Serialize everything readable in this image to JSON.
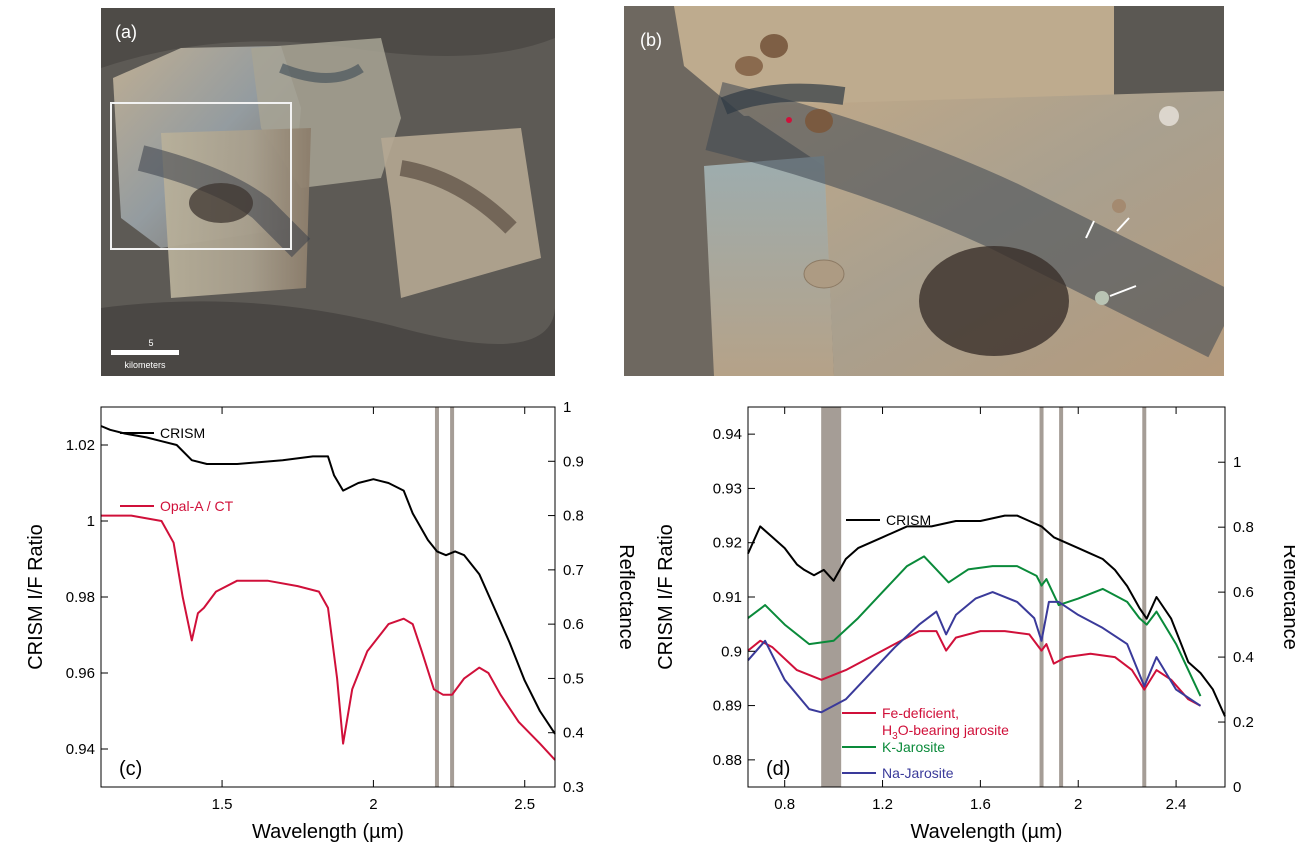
{
  "panels": {
    "a": {
      "label": "(a)",
      "scale_value": "5",
      "scale_unit": "kilometers"
    },
    "b": {
      "label": "(b)"
    }
  },
  "colors": {
    "crism": "#000000",
    "red": "#d0103a",
    "green": "#0a8a3a",
    "blue": "#3a3a9a",
    "band": "#a59d96"
  },
  "chart_data": [
    {
      "panel": "(c)",
      "type": "line",
      "xlabel": "Wavelength (µm)",
      "ylabel_left": "CRISM I/F Ratio",
      "ylabel_right": "Reflectance",
      "xlim": [
        1.1,
        2.6
      ],
      "ylim_left": [
        0.93,
        1.03
      ],
      "ylim_right": [
        0.3,
        1.0
      ],
      "x_ticks": [
        "1.5",
        "2",
        "2.5"
      ],
      "y_ticks_left": [
        "0.94",
        "0.96",
        "0.98",
        "1",
        "1.02"
      ],
      "y_ticks_right": [
        "0.3",
        "0.4",
        "0.5",
        "0.6",
        "0.7",
        "0.8",
        "0.9",
        "1"
      ],
      "absorption_bands": [
        2.21,
        2.26
      ],
      "series": [
        {
          "name": "CRISM",
          "axis": "left",
          "color": "#000000",
          "x": [
            1.1,
            1.13,
            1.18,
            1.25,
            1.3,
            1.35,
            1.4,
            1.45,
            1.55,
            1.7,
            1.8,
            1.85,
            1.87,
            1.9,
            1.95,
            2.0,
            2.05,
            2.1,
            2.13,
            2.18,
            2.21,
            2.24,
            2.27,
            2.3,
            2.35,
            2.4,
            2.45,
            2.5,
            2.55,
            2.6
          ],
          "y": [
            1.025,
            1.024,
            1.023,
            1.022,
            1.021,
            1.02,
            1.016,
            1.015,
            1.015,
            1.016,
            1.017,
            1.017,
            1.012,
            1.008,
            1.01,
            1.011,
            1.01,
            1.008,
            1.002,
            0.995,
            0.992,
            0.991,
            0.992,
            0.991,
            0.986,
            0.977,
            0.968,
            0.958,
            0.95,
            0.944
          ]
        },
        {
          "name": "Opal-A / CT",
          "axis": "right",
          "color": "#d0103a",
          "x": [
            1.1,
            1.2,
            1.3,
            1.34,
            1.37,
            1.4,
            1.42,
            1.44,
            1.48,
            1.55,
            1.65,
            1.75,
            1.82,
            1.85,
            1.88,
            1.9,
            1.93,
            1.98,
            2.05,
            2.1,
            2.13,
            2.16,
            2.2,
            2.23,
            2.26,
            2.3,
            2.35,
            2.38,
            2.42,
            2.48,
            2.55,
            2.6
          ],
          "y": [
            0.8,
            0.8,
            0.79,
            0.75,
            0.65,
            0.57,
            0.62,
            0.63,
            0.66,
            0.68,
            0.68,
            0.67,
            0.66,
            0.63,
            0.5,
            0.38,
            0.48,
            0.55,
            0.6,
            0.61,
            0.6,
            0.55,
            0.48,
            0.47,
            0.47,
            0.5,
            0.52,
            0.51,
            0.47,
            0.42,
            0.38,
            0.35
          ]
        }
      ],
      "legend": [
        "CRISM",
        "Opal-A / CT"
      ]
    },
    {
      "panel": "(d)",
      "type": "line",
      "xlabel": "Wavelength (µm)",
      "ylabel_left": "CRISM I/F Ratio",
      "ylabel_right": "Reflectance",
      "xlim": [
        0.65,
        2.6
      ],
      "ylim_left": [
        0.875,
        0.945
      ],
      "ylim_right": [
        0.0,
        1.17
      ],
      "x_ticks": [
        "0.8",
        "1.2",
        "1.6",
        "2",
        "2.4"
      ],
      "y_ticks_left": [
        "0.88",
        "0.89",
        "0.9",
        "0.91",
        "0.92",
        "0.93",
        "0.94"
      ],
      "y_ticks_right": [
        "0",
        "0.2",
        "0.4",
        "0.6",
        "0.8",
        "1"
      ],
      "absorption_bands": [
        0.99,
        1.85,
        1.93,
        2.27
      ],
      "series": [
        {
          "name": "CRISM",
          "axis": "left",
          "color": "#000000",
          "x": [
            0.65,
            0.7,
            0.75,
            0.8,
            0.85,
            0.88,
            0.92,
            0.96,
            1.0,
            1.05,
            1.1,
            1.2,
            1.3,
            1.4,
            1.5,
            1.6,
            1.7,
            1.75,
            1.8,
            1.85,
            1.9,
            1.95,
            2.0,
            2.05,
            2.1,
            2.15,
            2.2,
            2.25,
            2.28,
            2.32,
            2.38,
            2.45,
            2.5,
            2.55,
            2.6
          ],
          "y": [
            0.918,
            0.923,
            0.921,
            0.919,
            0.916,
            0.915,
            0.914,
            0.915,
            0.913,
            0.917,
            0.919,
            0.921,
            0.923,
            0.923,
            0.924,
            0.924,
            0.925,
            0.925,
            0.924,
            0.923,
            0.921,
            0.92,
            0.919,
            0.918,
            0.917,
            0.915,
            0.912,
            0.908,
            0.906,
            0.91,
            0.906,
            0.898,
            0.896,
            0.893,
            0.888
          ]
        },
        {
          "name": "Fe-deficient, H3O-bearing jarosite",
          "axis": "right",
          "color": "#d0103a",
          "x": [
            0.65,
            0.7,
            0.75,
            0.85,
            0.95,
            1.05,
            1.2,
            1.35,
            1.42,
            1.46,
            1.5,
            1.6,
            1.7,
            1.8,
            1.83,
            1.85,
            1.87,
            1.9,
            1.95,
            2.05,
            2.15,
            2.22,
            2.27,
            2.32,
            2.38,
            2.45,
            2.5
          ],
          "y": [
            0.42,
            0.45,
            0.43,
            0.36,
            0.33,
            0.36,
            0.42,
            0.48,
            0.48,
            0.42,
            0.46,
            0.48,
            0.48,
            0.47,
            0.44,
            0.42,
            0.44,
            0.38,
            0.4,
            0.41,
            0.4,
            0.36,
            0.3,
            0.36,
            0.33,
            0.27,
            0.25
          ]
        },
        {
          "name": "K-Jarosite",
          "axis": "right",
          "color": "#0a8a3a",
          "x": [
            0.65,
            0.72,
            0.8,
            0.9,
            1.0,
            1.1,
            1.2,
            1.3,
            1.37,
            1.42,
            1.47,
            1.55,
            1.65,
            1.75,
            1.83,
            1.85,
            1.87,
            1.92,
            2.0,
            2.1,
            2.2,
            2.25,
            2.28,
            2.32,
            2.4,
            2.5
          ],
          "y": [
            0.52,
            0.56,
            0.5,
            0.44,
            0.45,
            0.52,
            0.6,
            0.68,
            0.71,
            0.67,
            0.63,
            0.67,
            0.68,
            0.68,
            0.65,
            0.62,
            0.64,
            0.56,
            0.58,
            0.61,
            0.57,
            0.52,
            0.5,
            0.54,
            0.44,
            0.28
          ]
        },
        {
          "name": "Na-Jarosite",
          "axis": "right",
          "color": "#3a3a9a",
          "x": [
            0.65,
            0.72,
            0.8,
            0.9,
            0.95,
            1.05,
            1.15,
            1.25,
            1.35,
            1.42,
            1.46,
            1.5,
            1.58,
            1.65,
            1.75,
            1.82,
            1.85,
            1.88,
            1.92,
            2.0,
            2.1,
            2.2,
            2.27,
            2.32,
            2.4,
            2.5
          ],
          "y": [
            0.39,
            0.45,
            0.33,
            0.24,
            0.23,
            0.27,
            0.35,
            0.43,
            0.5,
            0.54,
            0.47,
            0.53,
            0.58,
            0.6,
            0.57,
            0.52,
            0.45,
            0.57,
            0.57,
            0.53,
            0.49,
            0.44,
            0.31,
            0.4,
            0.3,
            0.25
          ]
        }
      ],
      "legend": [
        "CRISM",
        "Fe-deficient, H3O-bearing jarosite",
        "K-Jarosite",
        "Na-Jarosite"
      ]
    }
  ]
}
